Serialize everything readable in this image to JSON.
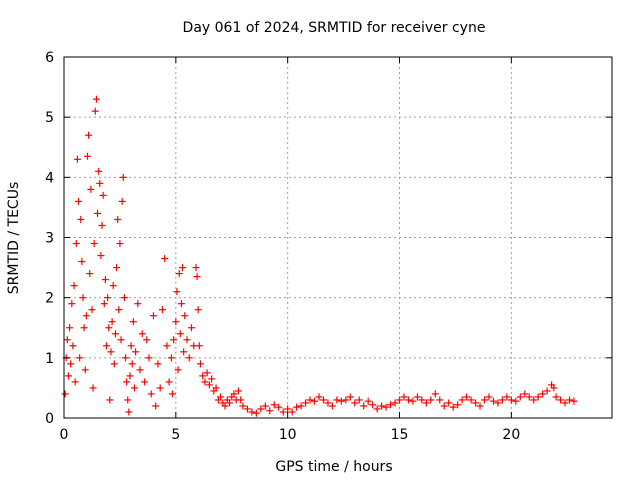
{
  "chart_data": {
    "type": "scatter",
    "title": "Day 061 of 2024, SRMTID for receiver cyne",
    "xlabel": "GPS time / hours",
    "ylabel": "SRMTID / TECUs",
    "xlim": [
      0,
      24.5
    ],
    "ylim": [
      0,
      6
    ],
    "xticks": [
      0,
      5,
      10,
      15,
      20
    ],
    "yticks": [
      0,
      1,
      2,
      3,
      4,
      5,
      6
    ],
    "xtick_labels": [
      "0",
      "5",
      "10",
      "15",
      "20"
    ],
    "ytick_labels": [
      "0",
      "1",
      "2",
      "3",
      "4",
      "5",
      "6"
    ],
    "grid": true,
    "marker": "+",
    "series": [
      {
        "name": "SRMTID",
        "color": "#ff0000",
        "points": [
          [
            0.05,
            0.4
          ],
          [
            0.1,
            1.0
          ],
          [
            0.15,
            1.3
          ],
          [
            0.2,
            0.7
          ],
          [
            0.25,
            1.5
          ],
          [
            0.3,
            0.9
          ],
          [
            0.35,
            1.9
          ],
          [
            0.4,
            1.2
          ],
          [
            0.45,
            2.2
          ],
          [
            0.5,
            0.6
          ],
          [
            0.55,
            2.9
          ],
          [
            0.6,
            4.3
          ],
          [
            0.65,
            3.6
          ],
          [
            0.7,
            1.0
          ],
          [
            0.75,
            3.3
          ],
          [
            0.8,
            2.6
          ],
          [
            0.85,
            2.0
          ],
          [
            0.9,
            1.5
          ],
          [
            0.95,
            0.8
          ],
          [
            1.0,
            1.7
          ],
          [
            1.05,
            4.35
          ],
          [
            1.1,
            4.7
          ],
          [
            1.15,
            2.4
          ],
          [
            1.2,
            3.8
          ],
          [
            1.25,
            1.8
          ],
          [
            1.3,
            0.5
          ],
          [
            1.35,
            2.9
          ],
          [
            1.4,
            5.1
          ],
          [
            1.45,
            5.3
          ],
          [
            1.5,
            3.4
          ],
          [
            1.55,
            4.1
          ],
          [
            1.6,
            3.9
          ],
          [
            1.65,
            2.7
          ],
          [
            1.7,
            3.2
          ],
          [
            1.75,
            3.7
          ],
          [
            1.8,
            1.9
          ],
          [
            1.85,
            2.3
          ],
          [
            1.9,
            1.2
          ],
          [
            1.95,
            2.0
          ],
          [
            2.0,
            1.5
          ],
          [
            2.05,
            0.3
          ],
          [
            2.1,
            1.1
          ],
          [
            2.15,
            1.6
          ],
          [
            2.2,
            2.2
          ],
          [
            2.25,
            0.9
          ],
          [
            2.3,
            1.4
          ],
          [
            2.35,
            2.5
          ],
          [
            2.4,
            3.3
          ],
          [
            2.45,
            1.8
          ],
          [
            2.5,
            2.9
          ],
          [
            2.55,
            1.3
          ],
          [
            2.6,
            3.6
          ],
          [
            2.65,
            4.0
          ],
          [
            2.7,
            2.0
          ],
          [
            2.75,
            1.0
          ],
          [
            2.8,
            0.6
          ],
          [
            2.85,
            0.3
          ],
          [
            2.9,
            0.1
          ],
          [
            2.95,
            0.7
          ],
          [
            3.0,
            1.2
          ],
          [
            3.05,
            0.9
          ],
          [
            3.1,
            1.6
          ],
          [
            3.15,
            0.5
          ],
          [
            3.2,
            1.1
          ],
          [
            3.3,
            1.9
          ],
          [
            3.4,
            0.8
          ],
          [
            3.5,
            1.4
          ],
          [
            3.6,
            0.6
          ],
          [
            3.7,
            1.3
          ],
          [
            3.8,
            1.0
          ],
          [
            3.9,
            0.4
          ],
          [
            4.0,
            1.7
          ],
          [
            4.1,
            0.2
          ],
          [
            4.2,
            0.9
          ],
          [
            4.3,
            0.5
          ],
          [
            4.4,
            1.8
          ],
          [
            4.5,
            2.65
          ],
          [
            4.6,
            1.2
          ],
          [
            4.7,
            0.6
          ],
          [
            4.8,
            1.0
          ],
          [
            4.85,
            0.4
          ],
          [
            4.9,
            1.3
          ],
          [
            5.0,
            1.6
          ],
          [
            5.05,
            2.1
          ],
          [
            5.1,
            0.8
          ],
          [
            5.15,
            2.4
          ],
          [
            5.2,
            1.4
          ],
          [
            5.25,
            1.9
          ],
          [
            5.3,
            2.5
          ],
          [
            5.35,
            1.1
          ],
          [
            5.4,
            1.7
          ],
          [
            5.5,
            1.3
          ],
          [
            5.6,
            1.0
          ],
          [
            5.7,
            1.5
          ],
          [
            5.8,
            1.2
          ],
          [
            5.9,
            2.5
          ],
          [
            5.95,
            2.35
          ],
          [
            6.0,
            1.8
          ],
          [
            6.05,
            1.2
          ],
          [
            6.1,
            0.9
          ],
          [
            6.2,
            0.7
          ],
          [
            6.3,
            0.6
          ],
          [
            6.4,
            0.75
          ],
          [
            6.5,
            0.55
          ],
          [
            6.6,
            0.65
          ],
          [
            6.7,
            0.45
          ],
          [
            6.8,
            0.5
          ],
          [
            6.9,
            0.3
          ],
          [
            7.0,
            0.35
          ],
          [
            7.1,
            0.25
          ],
          [
            7.2,
            0.2
          ],
          [
            7.3,
            0.3
          ],
          [
            7.4,
            0.25
          ],
          [
            7.5,
            0.35
          ],
          [
            7.6,
            0.4
          ],
          [
            7.7,
            0.3
          ],
          [
            7.8,
            0.45
          ],
          [
            7.9,
            0.3
          ],
          [
            8.0,
            0.2
          ],
          [
            8.2,
            0.15
          ],
          [
            8.4,
            0.1
          ],
          [
            8.6,
            0.08
          ],
          [
            8.8,
            0.15
          ],
          [
            9.0,
            0.2
          ],
          [
            9.2,
            0.12
          ],
          [
            9.4,
            0.22
          ],
          [
            9.6,
            0.18
          ],
          [
            9.8,
            0.1
          ],
          [
            10.0,
            0.15
          ],
          [
            10.2,
            0.1
          ],
          [
            10.4,
            0.18
          ],
          [
            10.6,
            0.2
          ],
          [
            10.8,
            0.25
          ],
          [
            11.0,
            0.3
          ],
          [
            11.2,
            0.28
          ],
          [
            11.4,
            0.35
          ],
          [
            11.6,
            0.3
          ],
          [
            11.8,
            0.25
          ],
          [
            12.0,
            0.2
          ],
          [
            12.2,
            0.3
          ],
          [
            12.4,
            0.28
          ],
          [
            12.6,
            0.3
          ],
          [
            12.8,
            0.35
          ],
          [
            13.0,
            0.25
          ],
          [
            13.2,
            0.3
          ],
          [
            13.4,
            0.2
          ],
          [
            13.6,
            0.28
          ],
          [
            13.8,
            0.22
          ],
          [
            14.0,
            0.15
          ],
          [
            14.2,
            0.2
          ],
          [
            14.4,
            0.18
          ],
          [
            14.6,
            0.22
          ],
          [
            14.8,
            0.25
          ],
          [
            15.0,
            0.3
          ],
          [
            15.2,
            0.35
          ],
          [
            15.4,
            0.3
          ],
          [
            15.6,
            0.28
          ],
          [
            15.8,
            0.35
          ],
          [
            16.0,
            0.3
          ],
          [
            16.2,
            0.25
          ],
          [
            16.4,
            0.3
          ],
          [
            16.6,
            0.4
          ],
          [
            16.8,
            0.3
          ],
          [
            17.0,
            0.2
          ],
          [
            17.2,
            0.25
          ],
          [
            17.4,
            0.18
          ],
          [
            17.6,
            0.22
          ],
          [
            17.8,
            0.3
          ],
          [
            18.0,
            0.35
          ],
          [
            18.2,
            0.3
          ],
          [
            18.4,
            0.25
          ],
          [
            18.6,
            0.2
          ],
          [
            18.8,
            0.3
          ],
          [
            19.0,
            0.35
          ],
          [
            19.2,
            0.28
          ],
          [
            19.4,
            0.25
          ],
          [
            19.6,
            0.3
          ],
          [
            19.8,
            0.35
          ],
          [
            20.0,
            0.3
          ],
          [
            20.2,
            0.28
          ],
          [
            20.4,
            0.35
          ],
          [
            20.6,
            0.4
          ],
          [
            20.8,
            0.35
          ],
          [
            21.0,
            0.3
          ],
          [
            21.2,
            0.35
          ],
          [
            21.4,
            0.4
          ],
          [
            21.6,
            0.45
          ],
          [
            21.8,
            0.55
          ],
          [
            21.9,
            0.5
          ],
          [
            22.0,
            0.35
          ],
          [
            22.2,
            0.3
          ],
          [
            22.4,
            0.25
          ],
          [
            22.6,
            0.3
          ],
          [
            22.8,
            0.28
          ]
        ]
      }
    ]
  }
}
